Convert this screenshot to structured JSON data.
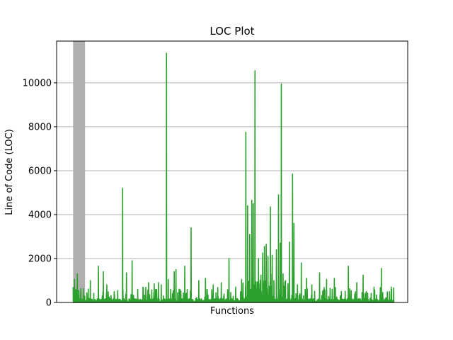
{
  "chart_data": {
    "type": "line",
    "title": "LOC Plot",
    "xlabel": "Functions",
    "ylabel": "Line of Code (LOC)",
    "ylim": [
      0,
      11900
    ],
    "xlim": [
      0,
      1000
    ],
    "yticks": [
      0,
      2000,
      4000,
      6000,
      8000,
      10000
    ],
    "ytick_labels": [
      "0",
      "2000",
      "4000",
      "6000",
      "8000",
      "10000"
    ],
    "xticks_shown": false,
    "grid": "y-major",
    "colors": {
      "line": "#2ca02c",
      "highlight": "#b0b0b0",
      "grid": "#b0b0b0"
    },
    "highlight_span": {
      "x_start": 47,
      "x_end": 81
    },
    "series": [
      {
        "baseline": 150,
        "spikes": [
          [
            47,
            700
          ],
          [
            51,
            1050
          ],
          [
            54,
            600
          ],
          [
            59,
            1300
          ],
          [
            63,
            550
          ],
          [
            68,
            400
          ],
          [
            80,
            300
          ],
          [
            96,
            1000
          ],
          [
            119,
            1650
          ],
          [
            133,
            1400
          ],
          [
            143,
            800
          ],
          [
            188,
            5200
          ],
          [
            199,
            1350
          ],
          [
            215,
            1900
          ],
          [
            231,
            600
          ],
          [
            246,
            700
          ],
          [
            262,
            900
          ],
          [
            278,
            850
          ],
          [
            290,
            900
          ],
          [
            298,
            800
          ],
          [
            313,
            11350
          ],
          [
            318,
            1050
          ],
          [
            335,
            1400
          ],
          [
            340,
            1500
          ],
          [
            365,
            1650
          ],
          [
            383,
            3400
          ],
          [
            405,
            1000
          ],
          [
            424,
            1100
          ],
          [
            446,
            800
          ],
          [
            469,
            900
          ],
          [
            491,
            2000
          ],
          [
            510,
            700
          ],
          [
            527,
            1050
          ],
          [
            539,
            7750
          ],
          [
            544,
            4400
          ],
          [
            550,
            3100
          ],
          [
            556,
            4650
          ],
          [
            560,
            4500
          ],
          [
            565,
            10550
          ],
          [
            575,
            2000
          ],
          [
            582,
            1250
          ],
          [
            587,
            2250
          ],
          [
            592,
            2550
          ],
          [
            597,
            2650
          ],
          [
            602,
            2100
          ],
          [
            609,
            4350
          ],
          [
            614,
            2150
          ],
          [
            619,
            1000
          ],
          [
            626,
            2400
          ],
          [
            632,
            4900
          ],
          [
            637,
            2700
          ],
          [
            640,
            9950
          ],
          [
            645,
            1300
          ],
          [
            652,
            1000
          ],
          [
            663,
            2750
          ],
          [
            672,
            5850
          ],
          [
            676,
            3600
          ],
          [
            686,
            800
          ],
          [
            697,
            1800
          ],
          [
            712,
            1100
          ],
          [
            727,
            800
          ],
          [
            749,
            1350
          ],
          [
            769,
            1050
          ],
          [
            791,
            1100
          ],
          [
            811,
            500
          ],
          [
            831,
            1650
          ],
          [
            855,
            900
          ],
          [
            873,
            1250
          ],
          [
            904,
            700
          ],
          [
            925,
            1550
          ],
          [
            953,
            700
          ]
        ]
      }
    ]
  }
}
